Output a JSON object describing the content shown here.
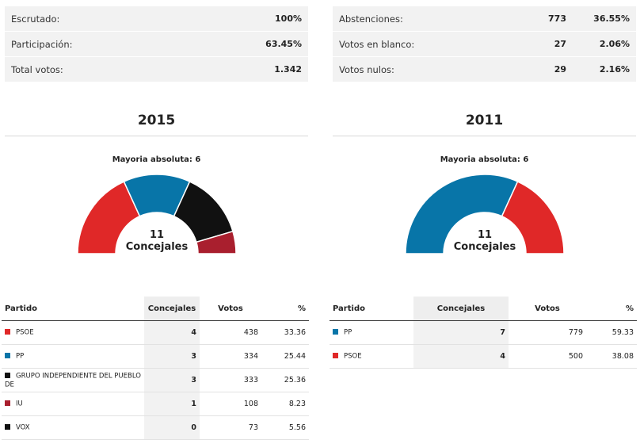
{
  "colors": {
    "PSOE": "#e02828",
    "PP": "#0875a8",
    "GIPD": "#111111",
    "IU": "#a91f2e",
    "VOX": "#111111"
  },
  "stats_left": [
    {
      "label": "Escrutado:",
      "value": "100%"
    },
    {
      "label": "Participación:",
      "value": "63.45%"
    },
    {
      "label": "Total votos:",
      "value": "1.342"
    }
  ],
  "stats_right": [
    {
      "label": "Abstenciones:",
      "votes": "773",
      "pct": "36.55%"
    },
    {
      "label": "Votos en blanco:",
      "votes": "27",
      "pct": "2.06%"
    },
    {
      "label": "Votos nulos:",
      "votes": "29",
      "pct": "2.16%"
    }
  ],
  "elections": [
    {
      "year": "2015",
      "mayoria": "Mayoria absoluta: 6",
      "total": "11",
      "total_label": "Concejales"
    },
    {
      "year": "2011",
      "mayoria": "Mayoria absoluta: 6",
      "total": "11",
      "total_label": "Concejales"
    }
  ],
  "table_headers": {
    "partido": "Partido",
    "concejales": "Concejales",
    "votos": "Votos",
    "pct": "%"
  },
  "chart_data": [
    {
      "type": "pie",
      "title": "2015",
      "categories": [
        "PSOE",
        "PP",
        "GRUPO INDEPENDIENTE DEL PUEBLO DE",
        "IU",
        "VOX"
      ],
      "values": [
        4,
        3,
        3,
        1,
        0
      ],
      "colors": [
        "#e02828",
        "#0875a8",
        "#111111",
        "#a91f2e",
        "#111111"
      ],
      "rows": [
        {
          "party": "PSOE",
          "color": "#e02828",
          "seats": "4",
          "votes": "438",
          "pct": "33.36"
        },
        {
          "party": "PP",
          "color": "#0875a8",
          "seats": "3",
          "votes": "334",
          "pct": "25.44"
        },
        {
          "party": "GRUPO INDEPENDIENTE DEL PUEBLO DE",
          "color": "#111111",
          "seats": "3",
          "votes": "333",
          "pct": "25.36"
        },
        {
          "party": "IU",
          "color": "#a91f2e",
          "seats": "1",
          "votes": "108",
          "pct": "8.23"
        },
        {
          "party": "VOX",
          "color": "#111111",
          "seats": "0",
          "votes": "73",
          "pct": "5.56"
        }
      ]
    },
    {
      "type": "pie",
      "title": "2011",
      "categories": [
        "PP",
        "PSOE"
      ],
      "values": [
        7,
        4
      ],
      "colors": [
        "#0875a8",
        "#e02828"
      ],
      "rows": [
        {
          "party": "PP",
          "color": "#0875a8",
          "seats": "7",
          "votes": "779",
          "pct": "59.33"
        },
        {
          "party": "PSOE",
          "color": "#e02828",
          "seats": "4",
          "votes": "500",
          "pct": "38.08"
        }
      ]
    }
  ]
}
